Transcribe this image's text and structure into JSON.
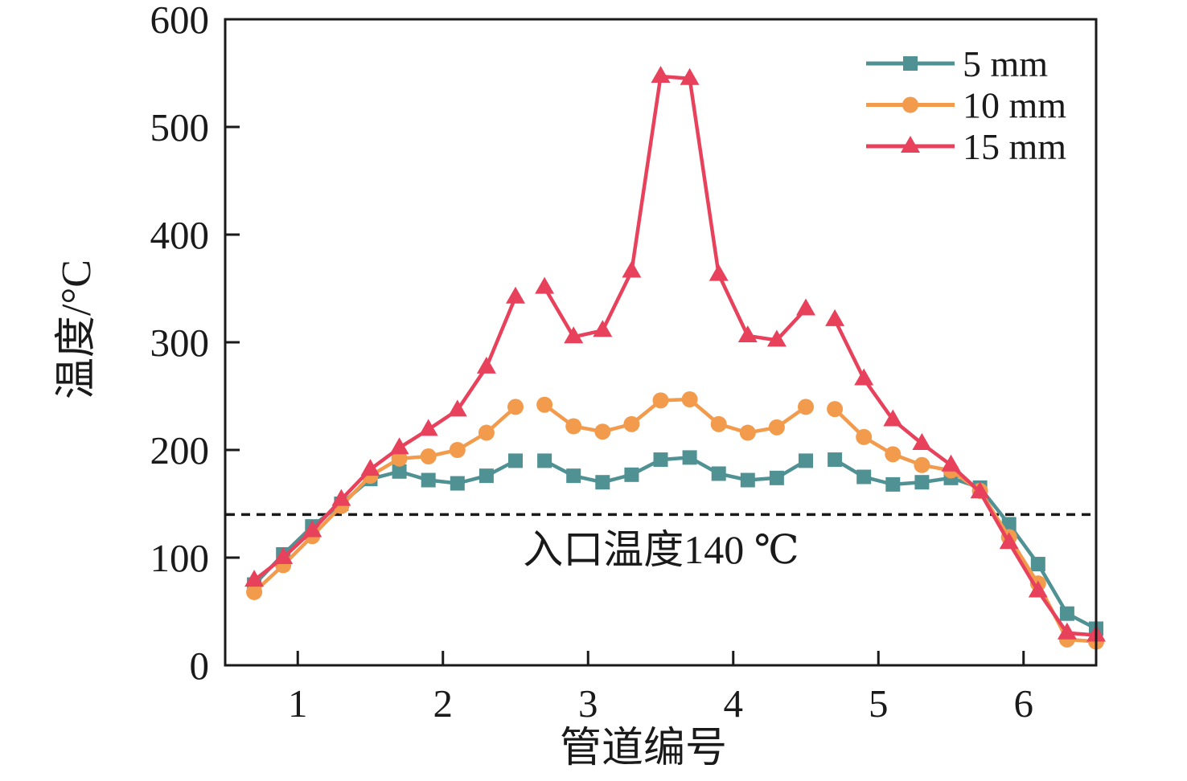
{
  "chart_data": {
    "type": "line",
    "title": "",
    "xlabel": "管道编号",
    "ylabel": "温度/°C",
    "xlim": [
      0.5,
      6.5
    ],
    "ylim": [
      0,
      600
    ],
    "xticks": [
      1,
      2,
      3,
      4,
      5,
      6
    ],
    "yticks": [
      0,
      100,
      200,
      300,
      400,
      500,
      600
    ],
    "grid": false,
    "legend_position": "top-right",
    "x": [
      0.7,
      0.9,
      1.1,
      1.3,
      1.5,
      1.7,
      1.9,
      2.1,
      2.3,
      2.5,
      2.7,
      2.9,
      3.1,
      3.3,
      3.5,
      3.7,
      3.9,
      4.1,
      4.3,
      4.5,
      4.7,
      4.9,
      5.1,
      5.3,
      5.5,
      5.7,
      5.9,
      6.1,
      6.3,
      6.5
    ],
    "segment_breaks": [
      10,
      20
    ],
    "series": [
      {
        "name": "5 mm",
        "marker": "square",
        "color": "#509194",
        "values": [
          75,
          103,
          129,
          150,
          173,
          180,
          172,
          169,
          176,
          190,
          190,
          176,
          170,
          177,
          191,
          193,
          178,
          172,
          174,
          190,
          191,
          175,
          168,
          170,
          174,
          165,
          131,
          94,
          48,
          34
        ]
      },
      {
        "name": "10 mm",
        "marker": "circle",
        "color": "#F39B4D",
        "values": [
          68,
          93,
          120,
          148,
          176,
          192,
          194,
          200,
          216,
          240,
          242,
          222,
          217,
          224,
          246,
          247,
          224,
          216,
          221,
          240,
          238,
          212,
          196,
          186,
          181,
          162,
          119,
          76,
          24,
          22
        ]
      },
      {
        "name": "15 mm",
        "marker": "triangle",
        "color": "#E8415C",
        "values": [
          79,
          100,
          125,
          154,
          182,
          202,
          219,
          237,
          277,
          342,
          351,
          305,
          311,
          366,
          547,
          545,
          363,
          306,
          302,
          331,
          321,
          266,
          228,
          206,
          186,
          161,
          114,
          69,
          30,
          28
        ]
      }
    ],
    "reference_line": {
      "y": 140,
      "style": "dashed",
      "color": "#1a1a1a",
      "label": "入口温度140 ℃"
    }
  }
}
